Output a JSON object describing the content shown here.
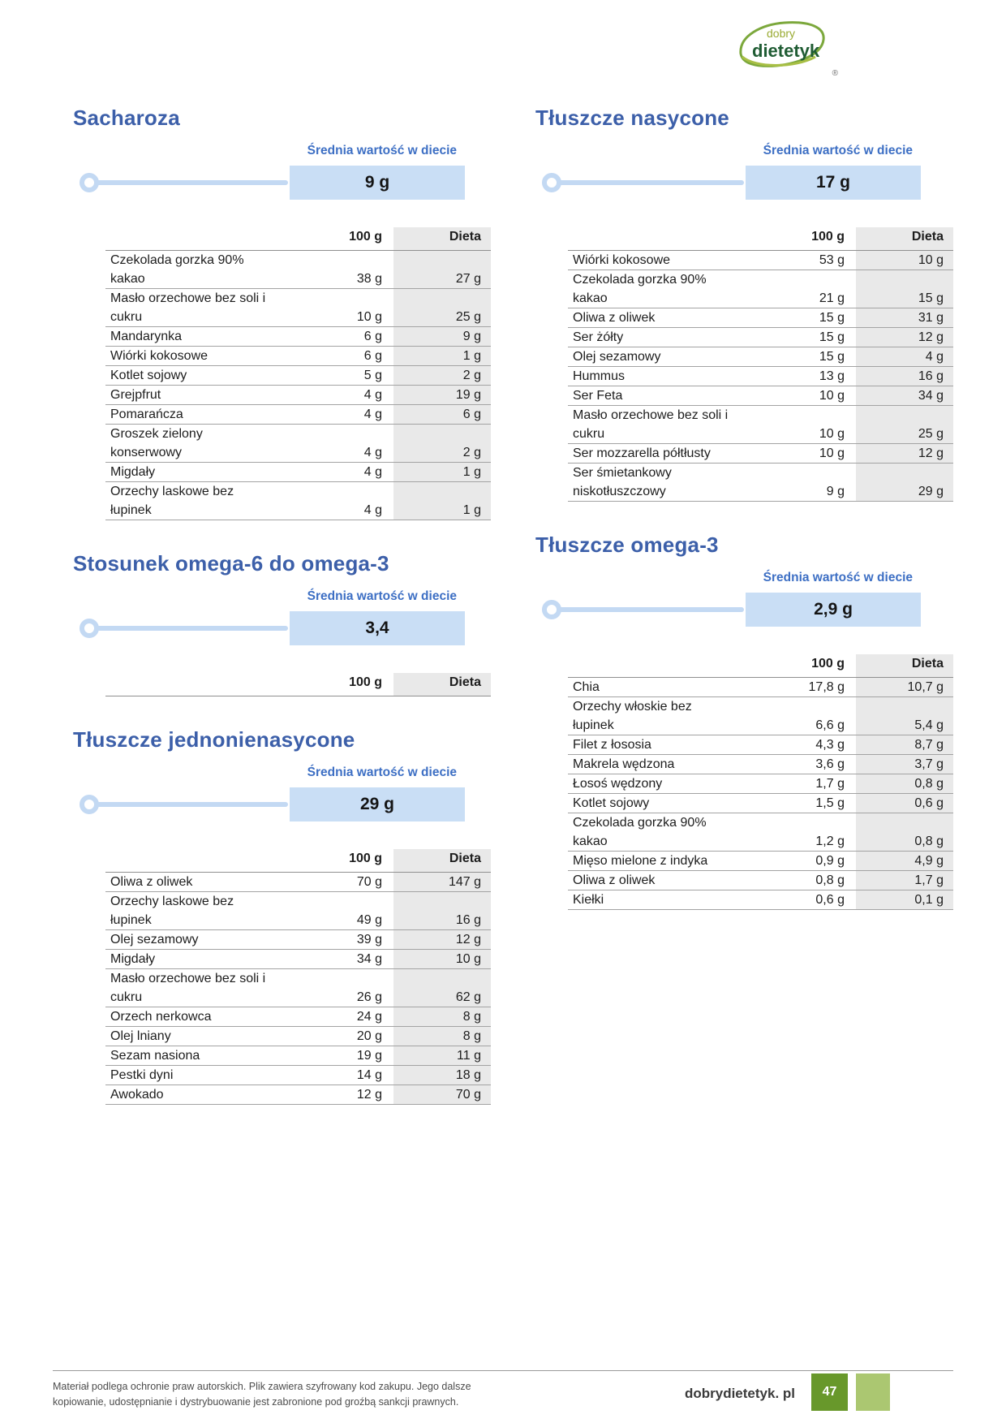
{
  "logo": {
    "top": "dobry",
    "bottom": "dietetyk",
    "registered": "®"
  },
  "common": {
    "avg_label": "Średnia wartość w diecie",
    "col_amount": "100 g",
    "col_diet": "Dieta"
  },
  "sections": [
    {
      "id": "sacharoza",
      "column": "left",
      "title": "Sacharoza",
      "avg": "9 g",
      "header_only": false,
      "rows": [
        {
          "name": "Czekolada gorzka 90%\nkakao",
          "per100": "38 g",
          "diet": "27 g"
        },
        {
          "name": "Masło orzechowe bez soli i\ncukru",
          "per100": "10 g",
          "diet": "25 g"
        },
        {
          "name": "Mandarynka",
          "per100": "6 g",
          "diet": "9 g"
        },
        {
          "name": "Wiórki kokosowe",
          "per100": "6 g",
          "diet": "1 g"
        },
        {
          "name": "Kotlet sojowy",
          "per100": "5 g",
          "diet": "2 g"
        },
        {
          "name": "Grejpfrut",
          "per100": "4 g",
          "diet": "19 g"
        },
        {
          "name": "Pomarańcza",
          "per100": "4 g",
          "diet": "6 g"
        },
        {
          "name": "Groszek zielony\nkonserwowy",
          "per100": "4 g",
          "diet": "2 g"
        },
        {
          "name": "Migdały",
          "per100": "4 g",
          "diet": "1 g"
        },
        {
          "name": "Orzechy laskowe bez\nłupinek",
          "per100": "4 g",
          "diet": "1 g"
        }
      ]
    },
    {
      "id": "stosunek-omega",
      "column": "left",
      "title": "Stosunek omega-6 do omega-3",
      "avg": "3,4",
      "header_only": true,
      "rows": []
    },
    {
      "id": "jednonienasycone",
      "column": "left",
      "title": "Tłuszcze jednonienasycone",
      "avg": "29 g",
      "header_only": false,
      "rows": [
        {
          "name": "Oliwa z oliwek",
          "per100": "70 g",
          "diet": "147 g"
        },
        {
          "name": "Orzechy laskowe bez\nłupinek",
          "per100": "49 g",
          "diet": "16 g"
        },
        {
          "name": "Olej sezamowy",
          "per100": "39 g",
          "diet": "12 g"
        },
        {
          "name": "Migdały",
          "per100": "34 g",
          "diet": "10 g"
        },
        {
          "name": "Masło orzechowe bez soli i\ncukru",
          "per100": "26 g",
          "diet": "62 g"
        },
        {
          "name": "Orzech nerkowca",
          "per100": "24 g",
          "diet": "8 g"
        },
        {
          "name": "Olej lniany",
          "per100": "20 g",
          "diet": "8 g"
        },
        {
          "name": "Sezam nasiona",
          "per100": "19 g",
          "diet": "11 g"
        },
        {
          "name": "Pestki dyni",
          "per100": "14 g",
          "diet": "18 g"
        },
        {
          "name": "Awokado",
          "per100": "12 g",
          "diet": "70 g"
        }
      ]
    },
    {
      "id": "nasycone",
      "column": "right",
      "title": "Tłuszcze nasycone",
      "avg": "17 g",
      "header_only": false,
      "rows": [
        {
          "name": "Wiórki kokosowe",
          "per100": "53 g",
          "diet": "10 g"
        },
        {
          "name": "Czekolada gorzka 90%\nkakao",
          "per100": "21 g",
          "diet": "15 g"
        },
        {
          "name": "Oliwa z oliwek",
          "per100": "15 g",
          "diet": "31 g"
        },
        {
          "name": "Ser żółty",
          "per100": "15 g",
          "diet": "12 g"
        },
        {
          "name": "Olej sezamowy",
          "per100": "15 g",
          "diet": "4 g"
        },
        {
          "name": "Hummus",
          "per100": "13 g",
          "diet": "16 g"
        },
        {
          "name": "Ser Feta",
          "per100": "10 g",
          "diet": "34 g"
        },
        {
          "name": "Masło orzechowe bez soli i\ncukru",
          "per100": "10 g",
          "diet": "25 g"
        },
        {
          "name": "Ser mozzarella półtłusty",
          "per100": "10 g",
          "diet": "12 g"
        },
        {
          "name": "Ser śmietankowy\nniskotłuszczowy",
          "per100": "9 g",
          "diet": "29 g"
        }
      ]
    },
    {
      "id": "omega3",
      "column": "right",
      "title": "Tłuszcze omega-3",
      "avg": "2,9 g",
      "header_only": false,
      "rows": [
        {
          "name": "Chia",
          "per100": "17,8 g",
          "diet": "10,7 g"
        },
        {
          "name": "Orzechy włoskie bez\nłupinek",
          "per100": "6,6 g",
          "diet": "5,4 g"
        },
        {
          "name": "Filet z łososia",
          "per100": "4,3 g",
          "diet": "8,7 g"
        },
        {
          "name": "Makrela wędzona",
          "per100": "3,6 g",
          "diet": "3,7 g"
        },
        {
          "name": "Łosoś wędzony",
          "per100": "1,7 g",
          "diet": "0,8 g"
        },
        {
          "name": "Kotlet sojowy",
          "per100": "1,5 g",
          "diet": "0,6 g"
        },
        {
          "name": "Czekolada gorzka 90%\nkakao",
          "per100": "1,2 g",
          "diet": "0,8 g"
        },
        {
          "name": "Mięso mielone z indyka",
          "per100": "0,9 g",
          "diet": "4,9 g"
        },
        {
          "name": "Oliwa z oliwek",
          "per100": "0,8 g",
          "diet": "1,7 g"
        },
        {
          "name": "Kiełki",
          "per100": "0,6 g",
          "diet": "0,1 g"
        }
      ]
    }
  ],
  "footer": {
    "note_line1": "Materiał podlega ochronie praw autorskich. Plik zawiera szyfrowany kod zakupu. Jego dalsze",
    "note_line2": "kopiowanie, udostępnianie i dystrybuowanie jest zabronione pod groźbą sankcji prawnych.",
    "site": "dobrydietetyk. pl",
    "page_number": "47"
  },
  "colors": {
    "title_blue": "#3c5fa9",
    "label_blue": "#3d6fc4",
    "bar_fill": "#c9def5",
    "bar_track": "#c3d9f3",
    "diet_column_bg": "#e9e9e9",
    "footer_green": "#68982b",
    "footer_green_light": "#abc771",
    "logo_green_dark": "#1f5c33",
    "logo_green_olive": "#9aab33"
  }
}
